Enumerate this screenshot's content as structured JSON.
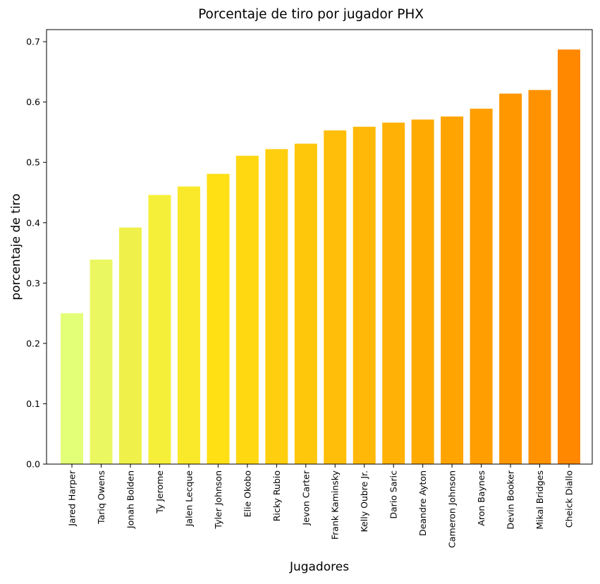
{
  "chart_data": {
    "type": "bar",
    "title": "Porcentaje de tiro por jugador PHX",
    "xlabel": "Jugadores",
    "ylabel": "porcentaje de tiro",
    "ylim": [
      0,
      0.72
    ],
    "yticks": [
      0.0,
      0.1,
      0.2,
      0.3,
      0.4,
      0.5,
      0.6,
      0.7
    ],
    "ytick_labels": [
      "0.0",
      "0.1",
      "0.2",
      "0.3",
      "0.4",
      "0.5",
      "0.6",
      "0.7"
    ],
    "grid": false,
    "legend": "none",
    "categories": [
      "Jared Harper",
      "Tariq Owens",
      "Jonah Bolden",
      "Ty Jerome",
      "Jalen Lecque",
      "Tyler Johnson",
      "Elie Okobo",
      "Ricky Rubio",
      "Jevon Carter",
      "Frank Kaminsky",
      "Kelly Oubre Jr.",
      "Dario Saric",
      "Deandre Ayton",
      "Cameron Johnson",
      "Aron Baynes",
      "Devin Booker",
      "Mikal Bridges",
      "Cheick Diallo"
    ],
    "values": [
      0.25,
      0.339,
      0.392,
      0.446,
      0.46,
      0.481,
      0.511,
      0.522,
      0.531,
      0.553,
      0.559,
      0.566,
      0.571,
      0.576,
      0.589,
      0.614,
      0.62,
      0.687
    ],
    "colors": [
      "#e3ff78",
      "#ebf760",
      "#eff049",
      "#f5ef3a",
      "#f9e92a",
      "#ffe014",
      "#ffd812",
      "#ffcf0f",
      "#ffc70b",
      "#ffbe0a",
      "#ffb807",
      "#ffb105",
      "#ffaa02",
      "#ffa401",
      "#ff9e00",
      "#ff9800",
      "#ff9200",
      "#ff8800"
    ]
  }
}
